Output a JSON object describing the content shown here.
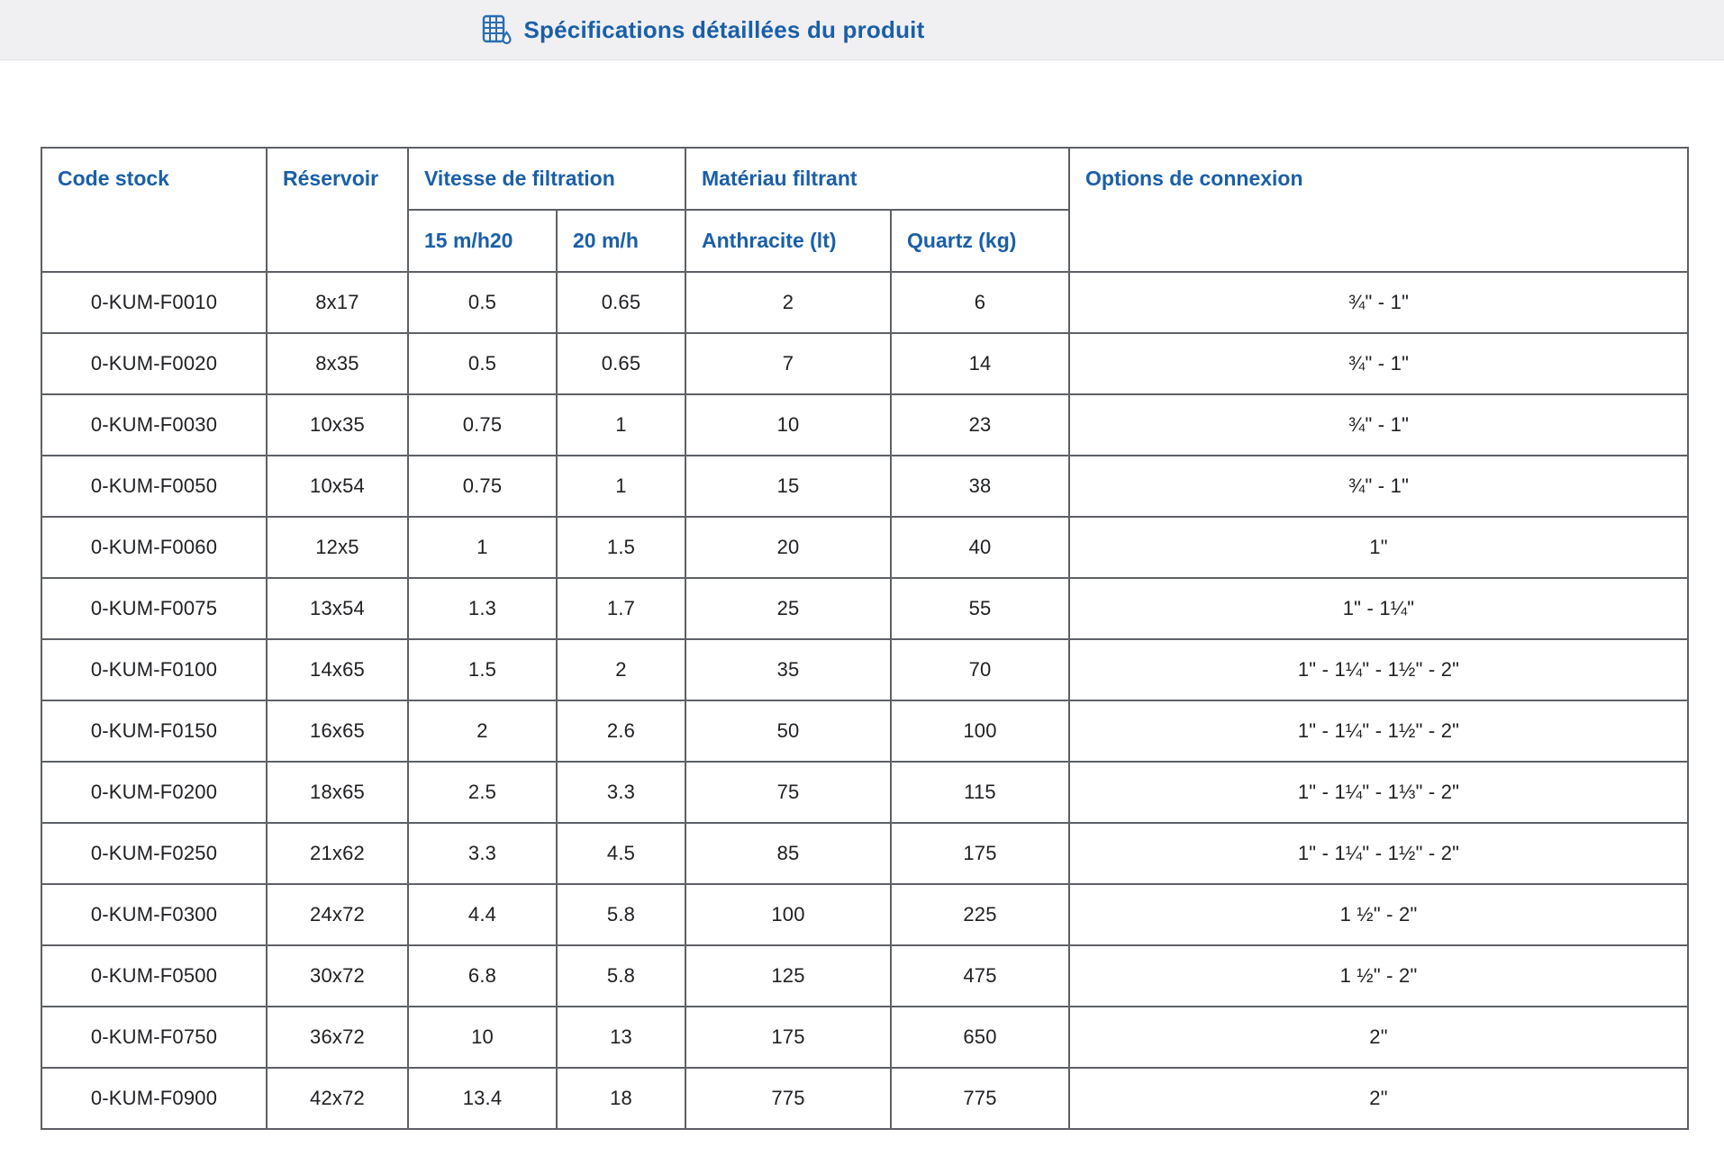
{
  "page": {
    "title": "Spécifications détaillées du produit",
    "title_icon": "spreadsheet-droplet-icon",
    "accent_color": "#1a5fa8",
    "band_color": "#f0f0f2",
    "border_color": "#5d6065"
  },
  "table": {
    "headers": {
      "code_stock": "Code stock",
      "reservoir": "Réservoir",
      "vitesse": "Vitesse de filtration",
      "vitesse_sub": [
        "15 m/h20",
        "20 m/h"
      ],
      "materiau": "Matériau filtrant",
      "materiau_sub": [
        "Anthracite (lt)",
        "Quartz (kg)"
      ],
      "options": "Options de connexion"
    },
    "column_keys": [
      "code-stock",
      "reservoir",
      "vitesse-15",
      "vitesse-20",
      "anthracite-lt",
      "quartz-kg",
      "options-connexion"
    ],
    "rows": [
      [
        "0-KUM-F0010",
        "8x17",
        "0.5",
        "0.65",
        "2",
        "6",
        "¾\" - 1\""
      ],
      [
        "0-KUM-F0020",
        "8x35",
        "0.5",
        "0.65",
        "7",
        "14",
        "¾\" - 1\""
      ],
      [
        "0-KUM-F0030",
        "10x35",
        "0.75",
        "1",
        "10",
        "23",
        "¾\" - 1\""
      ],
      [
        "0-KUM-F0050",
        "10x54",
        "0.75",
        "1",
        "15",
        "38",
        "¾\" - 1\""
      ],
      [
        "0-KUM-F0060",
        "12x5",
        "1",
        "1.5",
        "20",
        "40",
        "1\""
      ],
      [
        "0-KUM-F0075",
        "13x54",
        "1.3",
        "1.7",
        "25",
        "55",
        "1\" - 1¼\""
      ],
      [
        "0-KUM-F0100",
        "14x65",
        "1.5",
        "2",
        "35",
        "70",
        "1\" - 1¼\" - 1½\" - 2\""
      ],
      [
        "0-KUM-F0150",
        "16x65",
        "2",
        "2.6",
        "50",
        "100",
        "1\" - 1¼\" - 1½\" - 2\""
      ],
      [
        "0-KUM-F0200",
        "18x65",
        "2.5",
        "3.3",
        "75",
        "115",
        "1\" - 1¼\" - 1⅓\" - 2\""
      ],
      [
        "0-KUM-F0250",
        "21x62",
        "3.3",
        "4.5",
        "85",
        "175",
        "1\" - 1¼\" - 1½\" - 2\""
      ],
      [
        "0-KUM-F0300",
        "24x72",
        "4.4",
        "5.8",
        "100",
        "225",
        "1 ½\" - 2\""
      ],
      [
        "0-KUM-F0500",
        "30x72",
        "6.8",
        "5.8",
        "125",
        "475",
        "1 ½\" - 2\""
      ],
      [
        "0-KUM-F0750",
        "36x72",
        "10",
        "13",
        "175",
        "650",
        "2\""
      ],
      [
        "0-KUM-F0900",
        "42x72",
        "13.4",
        "18",
        "775",
        "775",
        "2\""
      ]
    ]
  }
}
